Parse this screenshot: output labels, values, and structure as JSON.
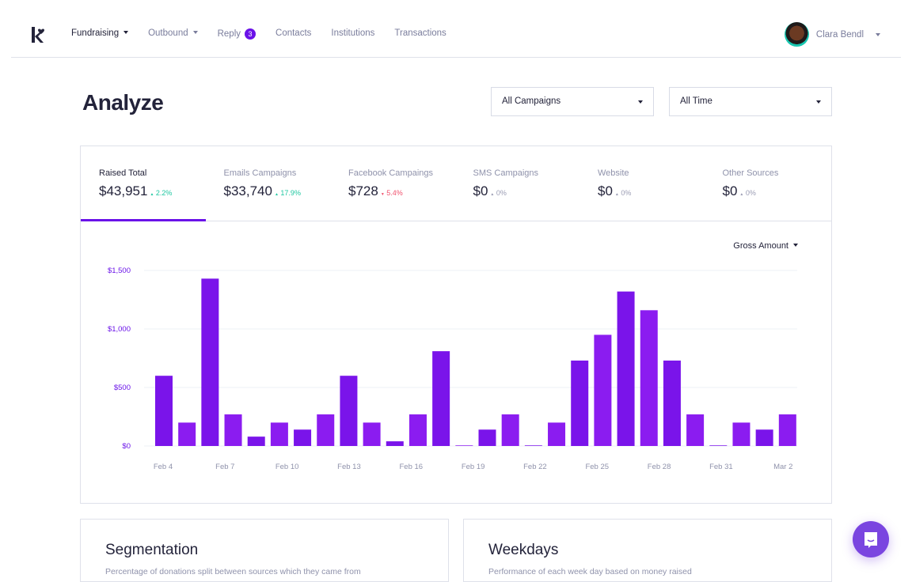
{
  "nav": {
    "items": [
      {
        "label": "Fundraising",
        "dropdown": true,
        "active": true
      },
      {
        "label": "Outbound",
        "dropdown": true
      },
      {
        "label": "Reply",
        "badge": "3"
      },
      {
        "label": "Contacts"
      },
      {
        "label": "Institutions"
      },
      {
        "label": "Transactions"
      }
    ],
    "user": "Clara Bendl"
  },
  "page": {
    "title": "Analyze",
    "campaign_select": "All Campaigns",
    "time_select": "All Time"
  },
  "stats": [
    {
      "label": "Raised Total",
      "value": "$43,951",
      "change": "2.2%",
      "dir": "up"
    },
    {
      "label": "Emails Campaigns",
      "value": "$33,740",
      "change": "17.9%",
      "dir": "up"
    },
    {
      "label": "Facebook Campaings",
      "value": "$728",
      "change": "5.4%",
      "dir": "down"
    },
    {
      "label": "SMS Campaigns",
      "value": "$0",
      "change": "0%",
      "dir": "flat"
    },
    {
      "label": "Website",
      "value": "$0",
      "change": "0%",
      "dir": "flat"
    },
    {
      "label": "Other Sources",
      "value": "$0",
      "change": "0%",
      "dir": "flat"
    }
  ],
  "metric_select": "Gross Amount",
  "colors": {
    "accent": "#6a12e8",
    "bar": "#7a14ea"
  },
  "chart_data": {
    "type": "bar",
    "ylim": [
      0,
      1500
    ],
    "yticks": [
      "$0",
      "$500",
      "$1,000",
      "$1,500"
    ],
    "ytick_values": [
      0,
      500,
      1000,
      1500
    ],
    "xtick_labels": [
      "Feb 4",
      "Feb 7",
      "Feb 10",
      "Feb 13",
      "Feb 16",
      "Feb 19",
      "Feb 22",
      "Feb 25",
      "Feb 28",
      "Feb 31",
      "Mar 2"
    ],
    "values": [
      600,
      200,
      1430,
      270,
      80,
      200,
      140,
      270,
      600,
      200,
      40,
      270,
      810,
      5,
      140,
      270,
      5,
      200,
      730,
      950,
      1320,
      1160,
      730,
      270,
      5,
      200,
      140,
      270
    ],
    "grid": true
  },
  "panels": [
    {
      "title": "Segmentation",
      "desc": "Percentage of donations split between sources which they came from"
    },
    {
      "title": "Weekdays",
      "desc": "Performance of each week day based on money raised"
    }
  ]
}
